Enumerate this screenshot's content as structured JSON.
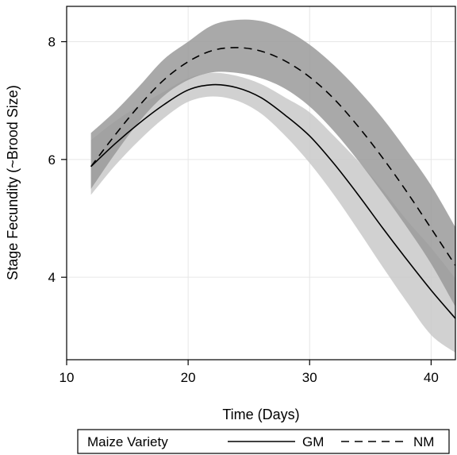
{
  "chart_data": {
    "type": "line",
    "xlabel": "Time (Days)",
    "ylabel": "Stage Fecundity (~Brood Size)",
    "xlim": [
      10,
      42
    ],
    "ylim": [
      2.6,
      8.6
    ],
    "xticks": [
      "10",
      "20",
      "30",
      "40"
    ],
    "xtick_values": [
      10,
      20,
      30,
      40
    ],
    "yticks": [
      "4",
      "6",
      "8"
    ],
    "ytick_values": [
      4,
      6,
      8
    ],
    "grid": true,
    "legend": {
      "title": "Maize Variety",
      "placement": "bottom",
      "entries": [
        {
          "name": "GM",
          "style": "solid"
        },
        {
          "name": "NM",
          "style": "dashed"
        }
      ]
    },
    "x": [
      12,
      14,
      16,
      18,
      20,
      22,
      24,
      26,
      28,
      30,
      32,
      34,
      36,
      38,
      40,
      42
    ],
    "series": [
      {
        "name": "GM",
        "style": "solid",
        "band_color": "#c9c9c9",
        "values": [
          5.88,
          6.27,
          6.62,
          6.93,
          7.18,
          7.27,
          7.22,
          7.05,
          6.75,
          6.4,
          5.93,
          5.4,
          4.84,
          4.3,
          3.78,
          3.3
        ],
        "lower": [
          5.4,
          5.9,
          6.33,
          6.7,
          6.98,
          7.07,
          7.0,
          6.78,
          6.4,
          5.94,
          5.4,
          4.8,
          4.18,
          3.58,
          3.02,
          2.72
        ],
        "upper": [
          6.33,
          6.65,
          6.92,
          7.15,
          7.38,
          7.47,
          7.42,
          7.28,
          7.05,
          6.8,
          6.4,
          5.97,
          5.49,
          4.97,
          4.5,
          3.98
        ]
      },
      {
        "name": "NM",
        "style": "dashed",
        "band_color": "#9a9a9a",
        "values": [
          5.88,
          6.42,
          6.92,
          7.35,
          7.66,
          7.85,
          7.9,
          7.84,
          7.67,
          7.4,
          7.03,
          6.56,
          6.03,
          5.45,
          4.83,
          4.2
        ],
        "lower": [
          5.5,
          6.1,
          6.65,
          7.08,
          7.35,
          7.48,
          7.47,
          7.38,
          7.2,
          6.9,
          6.48,
          5.98,
          5.43,
          4.85,
          4.23,
          3.5
        ],
        "upper": [
          6.45,
          6.82,
          7.25,
          7.7,
          8.0,
          8.28,
          8.37,
          8.35,
          8.2,
          7.95,
          7.6,
          7.18,
          6.7,
          6.15,
          5.56,
          4.85
        ]
      }
    ]
  }
}
